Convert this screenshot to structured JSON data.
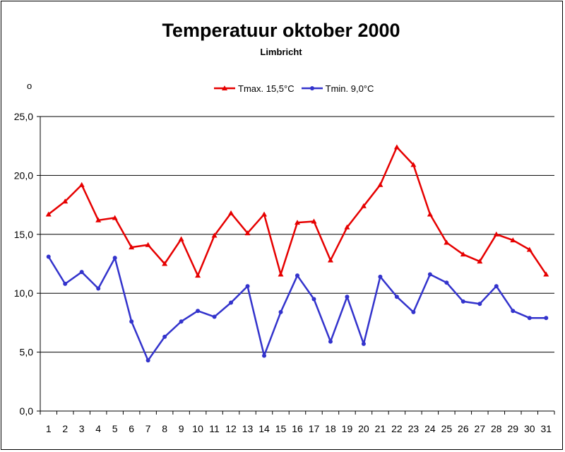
{
  "chart_data": {
    "type": "line",
    "title": "Temperatuur oktober 2000",
    "subtitle": "Limbricht",
    "note": "o",
    "categories": [
      "1",
      "2",
      "3",
      "4",
      "5",
      "6",
      "7",
      "8",
      "9",
      "10",
      "11",
      "12",
      "13",
      "14",
      "15",
      "16",
      "17",
      "18",
      "19",
      "20",
      "21",
      "22",
      "23",
      "24",
      "25",
      "26",
      "27",
      "28",
      "29",
      "30",
      "31"
    ],
    "series": [
      {
        "name": "Tmax. 15,5°C",
        "color": "#e60000",
        "marker": "triangle",
        "values": [
          16.7,
          17.8,
          19.2,
          16.2,
          16.4,
          13.9,
          14.1,
          12.5,
          14.6,
          11.5,
          14.9,
          16.8,
          15.1,
          16.7,
          11.6,
          16.0,
          16.1,
          12.8,
          15.6,
          17.4,
          19.2,
          22.4,
          20.9,
          16.7,
          14.3,
          13.3,
          12.7,
          15.0,
          14.5,
          13.7,
          11.6
        ]
      },
      {
        "name": "Tmin. 9,0°C",
        "color": "#3333cc",
        "marker": "circle",
        "values": [
          13.1,
          10.8,
          11.8,
          10.4,
          13.0,
          7.6,
          4.3,
          6.3,
          7.6,
          8.5,
          8.0,
          9.2,
          10.6,
          4.7,
          8.4,
          11.5,
          9.5,
          5.9,
          9.7,
          5.7,
          11.4,
          9.7,
          8.4,
          11.6,
          10.9,
          9.3,
          9.1,
          10.6,
          8.5,
          7.9,
          7.9
        ]
      }
    ],
    "ylim": [
      0,
      25
    ],
    "yticks": [
      "0,0",
      "5,0",
      "10,0",
      "15,0",
      "20,0",
      "25,0"
    ],
    "ytick_values": [
      0,
      5,
      10,
      15,
      20,
      25
    ],
    "grid": true,
    "legend_position": "top"
  }
}
